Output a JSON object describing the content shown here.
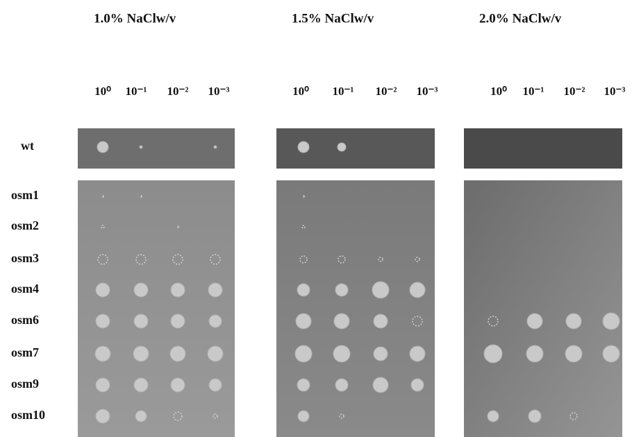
{
  "panels": [
    {
      "title": "1.0%  NaClw/v"
    },
    {
      "title": "1.5%  NaClw/v"
    },
    {
      "title": "2.0%  NaClw/v"
    }
  ],
  "dilutions": [
    "10⁰",
    "10⁻¹",
    "10⁻²",
    "10⁻³"
  ],
  "strains": [
    "wt",
    "osm1",
    "osm2",
    "osm3",
    "osm4",
    "osm6",
    "osm7",
    "osm9",
    "osm10"
  ]
}
